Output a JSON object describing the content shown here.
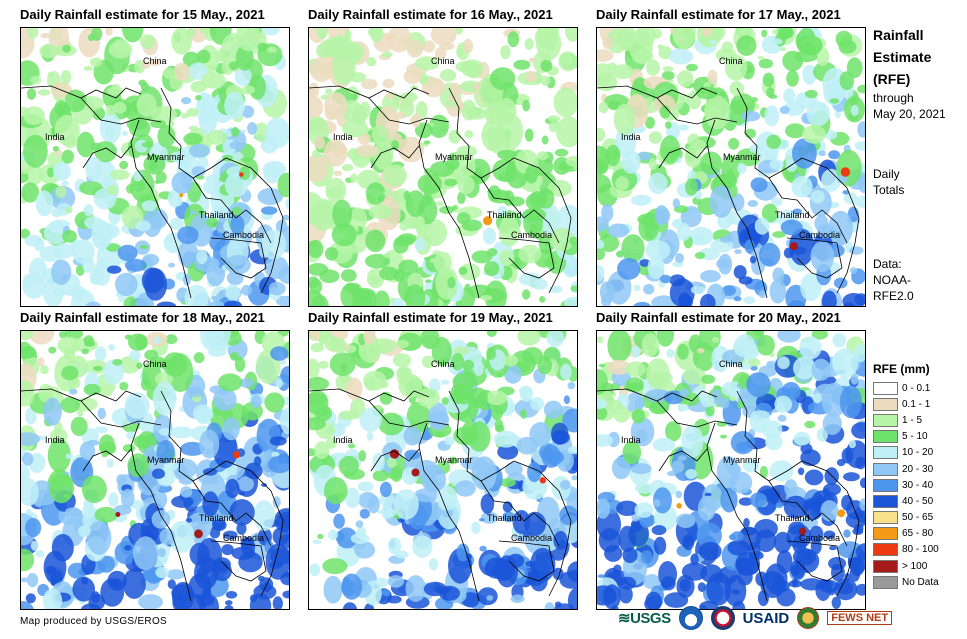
{
  "panels": [
    {
      "title": "Daily Rainfall estimate for 15 May., 2021",
      "intensity": 0.55
    },
    {
      "title": "Daily Rainfall estimate for 16 May., 2021",
      "intensity": 0.35
    },
    {
      "title": "Daily Rainfall estimate for 17 May., 2021",
      "intensity": 0.6
    },
    {
      "title": "Daily Rainfall estimate for 18 May., 2021",
      "intensity": 0.75
    },
    {
      "title": "Daily Rainfall estimate for 19 May., 2021",
      "intensity": 0.7
    },
    {
      "title": "Daily Rainfall estimate for 20 May., 2021",
      "intensity": 0.85
    }
  ],
  "map_labels": {
    "china": "China",
    "india": "India",
    "myanmar": "Myanmar",
    "thailand": "Thailand",
    "cambodia": "Cambodia"
  },
  "side": {
    "title_line1": "Rainfall",
    "title_line2": "Estimate",
    "title_line3": "(RFE)",
    "through": "through",
    "through_date": "May 20, 2021",
    "totals_line1": "Daily",
    "totals_line2": "Totals",
    "data_line1": "Data:",
    "data_line2": "NOAA-",
    "data_line3": "RFE2.0"
  },
  "legend": {
    "title": "RFE (mm)",
    "items": [
      {
        "label": "0 - 0.1",
        "color": "#ffffff"
      },
      {
        "label": "0.1 - 1",
        "color": "#ecdcbf"
      },
      {
        "label": "1 - 5",
        "color": "#b6f5a8"
      },
      {
        "label": "5 - 10",
        "color": "#6ee36a"
      },
      {
        "label": "10 - 20",
        "color": "#bff0f7"
      },
      {
        "label": "20 - 30",
        "color": "#8fc8f6"
      },
      {
        "label": "30 - 40",
        "color": "#4d96ee"
      },
      {
        "label": "40 - 50",
        "color": "#1a55d8"
      },
      {
        "label": "50 - 65",
        "color": "#f9e08a"
      },
      {
        "label": "65 - 80",
        "color": "#f59a16"
      },
      {
        "label": "80 - 100",
        "color": "#ee3a12"
      },
      {
        "label": "> 100",
        "color": "#a51a1a"
      },
      {
        "label": "No Data",
        "color": "#9a9a9a"
      }
    ]
  },
  "credit": "Map produced by USGS/EROS",
  "logos": {
    "usgs": "≋USGS",
    "usaid": "USAID",
    "fews": "FEWS NET"
  }
}
